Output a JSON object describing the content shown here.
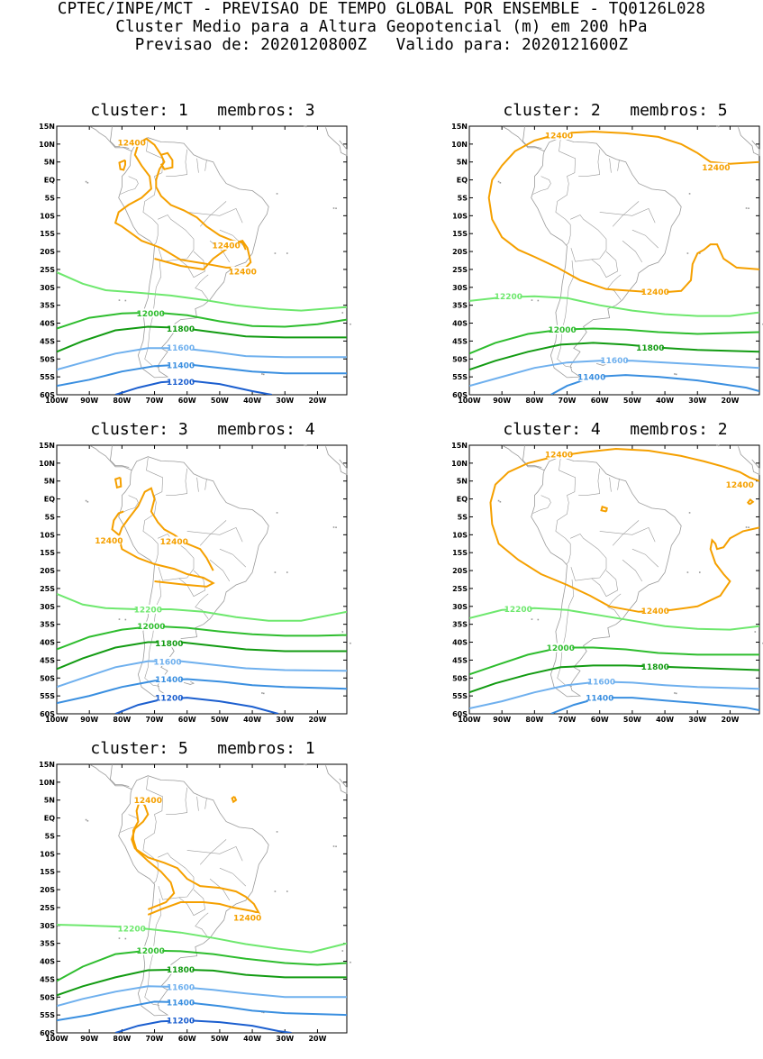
{
  "header": {
    "line1": "CPTEC/INPE/MCT - PREVISAO DE TEMPO GLOBAL POR ENSEMBLE - TQ0126L028",
    "line2": "Cluster Medio para a Altura Geopotencial (m) em 200 hPa",
    "line3": "Previsao de: 2020120800Z   Valido para: 2020121600Z"
  },
  "axes": {
    "lat_labels": [
      "15N",
      "10N",
      "5N",
      "EQ",
      "5S",
      "10S",
      "15S",
      "20S",
      "25S",
      "30S",
      "35S",
      "40S",
      "45S",
      "50S",
      "55S",
      "60S"
    ],
    "lon_labels": [
      "100W",
      "90W",
      "80W",
      "70W",
      "60W",
      "50W",
      "40W",
      "30W",
      "20W"
    ]
  },
  "colors": {
    "c12400": "#f5a000",
    "c12200": "#6ee86e",
    "c12000": "#2ebd2e",
    "c11800": "#129b12",
    "c11600": "#6fb0ee",
    "c11400": "#3a8fe0",
    "c11200": "#1c5fcf",
    "coast": "#9a9a9a"
  },
  "panels": [
    {
      "title": "cluster: 1   membros: 3",
      "labels": [
        "12400",
        "12400",
        "12400",
        "12000",
        "11800",
        "11600",
        "11400",
        "11200"
      ]
    },
    {
      "title": "cluster: 2   membros: 5",
      "labels": [
        "12400",
        "12400",
        "12400",
        "12200",
        "12000",
        "11800",
        "11600",
        "11400"
      ]
    },
    {
      "title": "cluster: 3   membros: 4",
      "labels": [
        "12400",
        "12400",
        "12200",
        "12000",
        "11800",
        "11600",
        "11400",
        "11200"
      ]
    },
    {
      "title": "cluster: 4   membros: 2",
      "labels": [
        "12400",
        "12400",
        "12400",
        "12200",
        "12000",
        "11800",
        "11600",
        "11400"
      ]
    },
    {
      "title": "cluster: 5   membros: 1",
      "labels": [
        "12400",
        "12400",
        "12200",
        "12000",
        "11800",
        "11600",
        "11400",
        "11200"
      ]
    }
  ]
}
